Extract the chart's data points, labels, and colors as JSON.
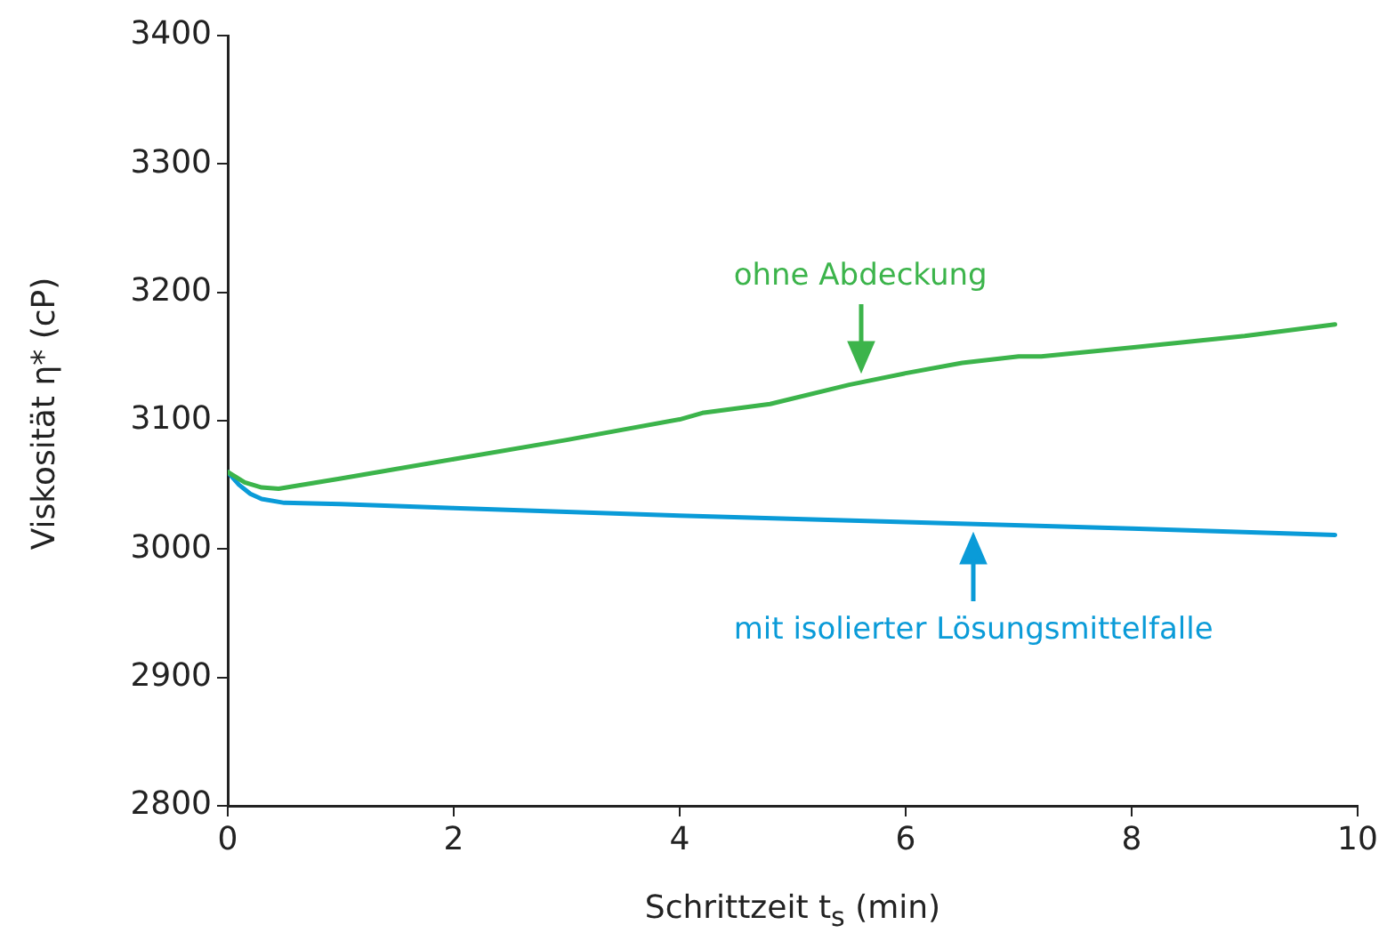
{
  "chart_data": {
    "type": "line",
    "xlabel": "Schrittzeit t$_{s}$ (min)",
    "ylabel": "Viskosität η* (cP)",
    "xlim": [
      0,
      10
    ],
    "xticks": [
      0,
      2,
      4,
      6,
      8,
      10
    ],
    "ylim": [
      2800,
      3400
    ],
    "yticks": [
      2800,
      2900,
      3000,
      3100,
      3200,
      3300,
      3400
    ],
    "grid": false,
    "legend": false,
    "marker": "none",
    "series": [
      {
        "color": "#3cb44b",
        "x": [
          0,
          0.15,
          0.3,
          0.45,
          1,
          2,
          3,
          4,
          4.2,
          4.8,
          5.5,
          6,
          6.5,
          7,
          7.2,
          8,
          9,
          9.8
        ],
        "values": [
          3060,
          3052,
          3048,
          3047,
          3055,
          3070,
          3085,
          3101,
          3106,
          3113,
          3128,
          3137,
          3145,
          3150,
          3150,
          3157,
          3166,
          3175
        ]
      },
      {
        "color": "#0a9bd8",
        "x": [
          0,
          0.1,
          0.2,
          0.3,
          0.5,
          1,
          2,
          4,
          6,
          8,
          9.8
        ],
        "values": [
          3060,
          3050,
          3043,
          3039,
          3036,
          3035,
          3032,
          3026,
          3021,
          3016,
          3011
        ]
      }
    ],
    "annotations": [
      {
        "text": "ohne Abdeckung",
        "x": 5.6,
        "y": 3130
      },
      {
        "text": "mit isolierter Lösungsmittelfalle",
        "x": 6.6,
        "y": 3021
      }
    ]
  }
}
